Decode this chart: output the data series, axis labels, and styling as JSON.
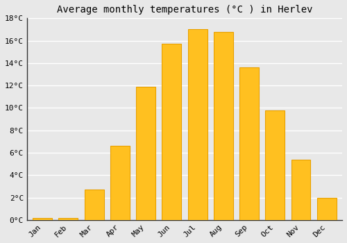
{
  "title": "Average monthly temperatures (°C ) in Herlev",
  "months": [
    "Jan",
    "Feb",
    "Mar",
    "Apr",
    "May",
    "Jun",
    "Jul",
    "Aug",
    "Sep",
    "Oct",
    "Nov",
    "Dec"
  ],
  "temperatures": [
    0.2,
    0.2,
    2.7,
    6.6,
    11.9,
    15.7,
    17.0,
    16.8,
    13.6,
    9.8,
    5.4,
    2.0
  ],
  "bar_color": "#FFC020",
  "bar_edge_color": "#E8A000",
  "ylim": [
    0,
    18
  ],
  "yticks": [
    0,
    2,
    4,
    6,
    8,
    10,
    12,
    14,
    16,
    18
  ],
  "ytick_labels": [
    "0°C",
    "2°C",
    "4°C",
    "6°C",
    "8°C",
    "10°C",
    "12°C",
    "14°C",
    "16°C",
    "18°C"
  ],
  "background_color": "#e8e8e8",
  "grid_color": "#ffffff",
  "title_fontsize": 10,
  "tick_fontsize": 8,
  "bar_width": 0.75
}
